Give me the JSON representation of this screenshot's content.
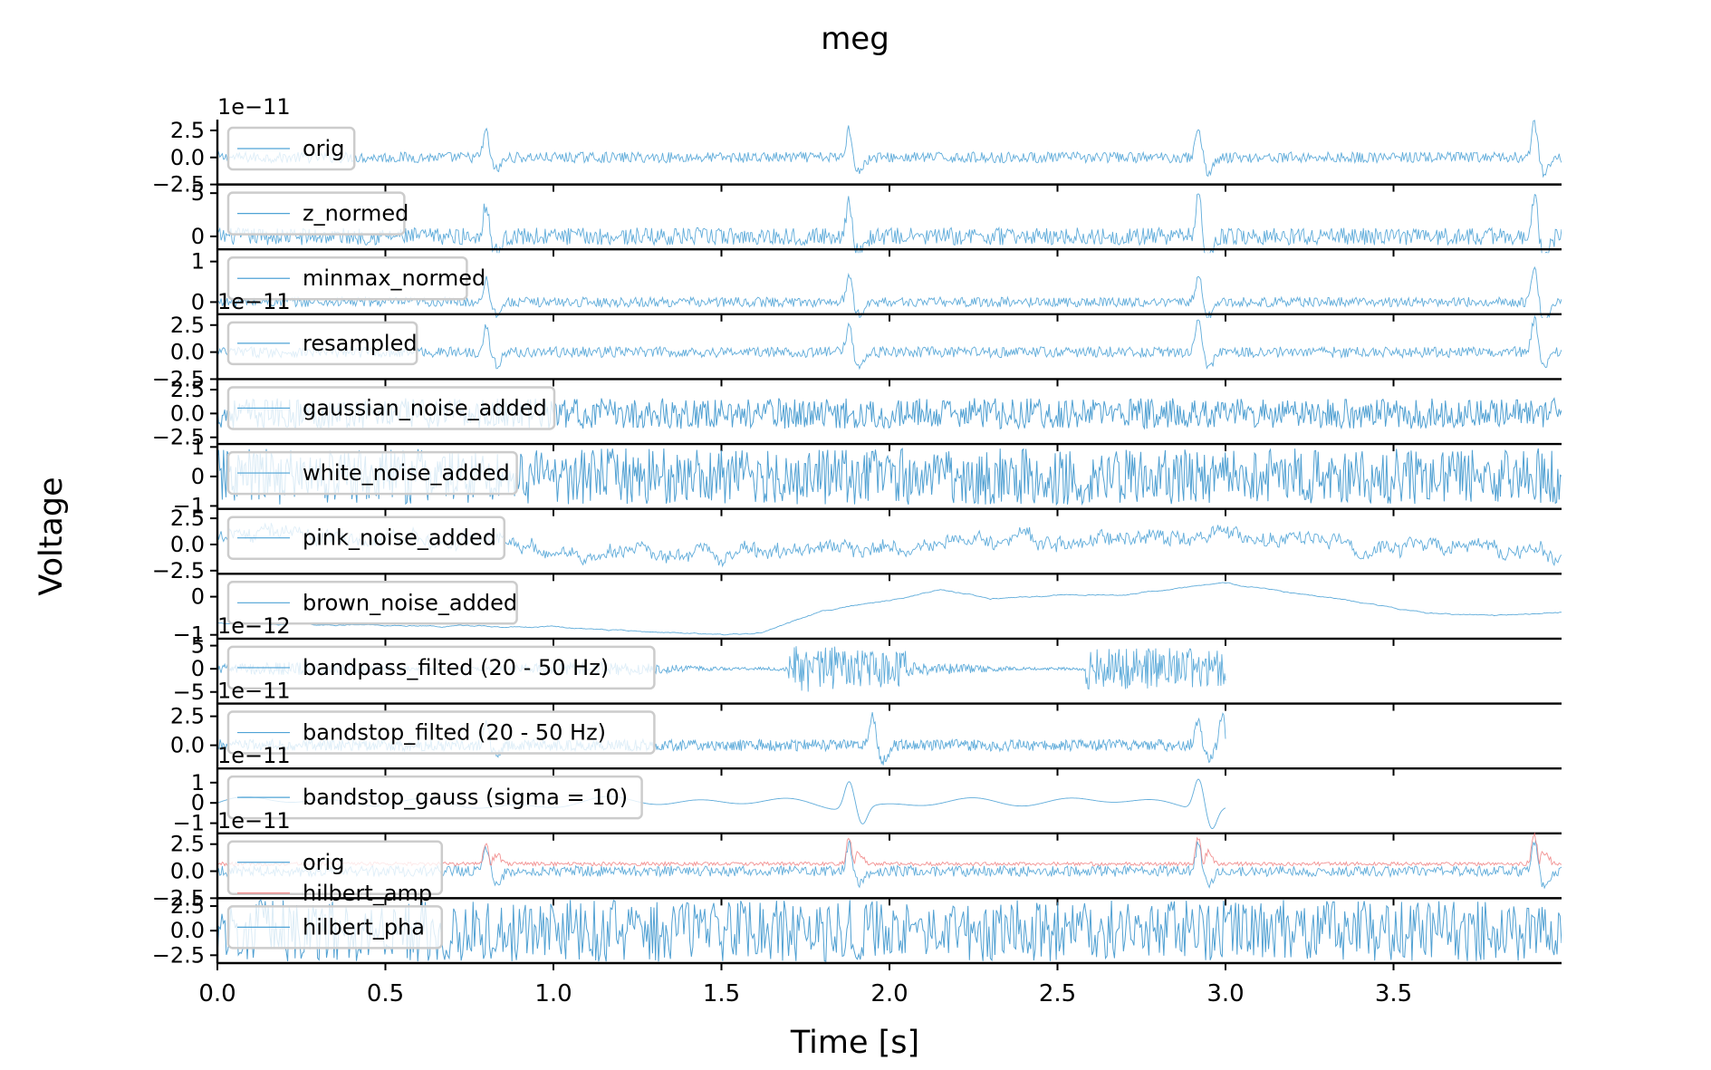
{
  "chart_data": {
    "type": "line",
    "title": "meg",
    "xlabel": "Time [s]",
    "ylabel": "Voltage",
    "xlim": [
      0,
      4.0
    ],
    "xticks": [
      0.0,
      0.5,
      1.0,
      1.5,
      2.0,
      2.5,
      3.0,
      3.5
    ],
    "xtick_labels": [
      "0.0",
      "0.5",
      "1.0",
      "1.5",
      "2.0",
      "2.5",
      "3.0",
      "3.5"
    ],
    "grid": false,
    "legend": "upper left of each panel",
    "colors": {
      "series": "#4fa3d6",
      "dense_series": "#3d96cd",
      "hilbert_amp": "#f07f7f",
      "axis": "#000000",
      "legend_border": "#cccccc"
    },
    "panels": [
      {
        "label": "orig",
        "offset_text": "1e−11",
        "yticks": [
          "2.5",
          "0.0",
          "−2.5"
        ],
        "ylim": [
          -2.5,
          3.5
        ],
        "x_end": 4.0,
        "style": "spiky",
        "noise": 0.5,
        "spikes": [
          [
            0.8,
            2.5
          ],
          [
            1.88,
            2.8
          ],
          [
            2.92,
            3.0
          ],
          [
            3.92,
            3.3
          ]
        ]
      },
      {
        "label": "z_normed",
        "offset_text": "",
        "yticks": [
          "5",
          "0"
        ],
        "ylim": [
          -1.5,
          6.0
        ],
        "x_end": 4.0,
        "style": "spiky",
        "noise": 1.0,
        "spikes": [
          [
            0.8,
            4.0
          ],
          [
            1.88,
            4.5
          ],
          [
            2.92,
            4.8
          ],
          [
            3.92,
            5.2
          ]
        ]
      },
      {
        "label": "minmax_normed",
        "offset_text": "",
        "yticks": [
          "1",
          "0"
        ],
        "ylim": [
          -0.3,
          1.3
        ],
        "x_end": 4.0,
        "style": "spiky",
        "noise": 0.12,
        "spikes": [
          [
            0.8,
            0.6
          ],
          [
            1.88,
            0.7
          ],
          [
            2.92,
            0.75
          ],
          [
            3.92,
            1.0
          ]
        ]
      },
      {
        "label": "resampled",
        "offset_text": "1e−11",
        "yticks": [
          "2.5",
          "0.0",
          "−2.5"
        ],
        "ylim": [
          -2.5,
          3.5
        ],
        "x_end": 4.0,
        "style": "spiky",
        "noise": 0.5,
        "spikes": [
          [
            0.8,
            2.5
          ],
          [
            1.88,
            2.8
          ],
          [
            2.92,
            3.0
          ],
          [
            3.92,
            3.2
          ]
        ]
      },
      {
        "label": "gaussian_noise_added",
        "offset_text": "",
        "yticks": [
          "2.5",
          "0.0",
          "−2.5"
        ],
        "ylim": [
          -3.2,
          3.6
        ],
        "x_end": 4.0,
        "style": "noise",
        "noise": 1.6
      },
      {
        "label": "white_noise_added",
        "offset_text": "",
        "yticks": [
          "1",
          "0",
          "−1"
        ],
        "ylim": [
          -1.1,
          1.1
        ],
        "x_end": 4.0,
        "style": "noise",
        "noise": 0.95
      },
      {
        "label": "pink_noise_added",
        "offset_text": "",
        "yticks": [
          "2.5",
          "0.0",
          "−2.5"
        ],
        "ylim": [
          -2.8,
          3.4
        ],
        "x_end": 4.0,
        "style": "pink",
        "noise": 0.7
      },
      {
        "label": "brown_noise_added",
        "offset_text": "",
        "yticks": [
          "0",
          "−1"
        ],
        "ylim": [
          -1.1,
          0.6
        ],
        "x_end": 4.0,
        "style": "brown",
        "noise": 0.05,
        "anchors": [
          [
            0.0,
            -0.7
          ],
          [
            0.5,
            -0.75
          ],
          [
            1.0,
            -0.8
          ],
          [
            1.5,
            -1.0
          ],
          [
            1.62,
            -0.95
          ],
          [
            1.8,
            -0.35
          ],
          [
            2.0,
            -0.1
          ],
          [
            2.15,
            0.2
          ],
          [
            2.3,
            -0.05
          ],
          [
            2.5,
            0.05
          ],
          [
            2.7,
            0.05
          ],
          [
            3.0,
            0.35
          ],
          [
            3.3,
            0.0
          ],
          [
            3.6,
            -0.45
          ],
          [
            3.8,
            -0.5
          ],
          [
            4.0,
            -0.4
          ]
        ]
      },
      {
        "label": "bandpass_filted (20 - 50 Hz)",
        "offset_text": "1e−12",
        "yticks": [
          "5",
          "0",
          "−5"
        ],
        "ylim": [
          -7.5,
          6.5
        ],
        "x_end": 3.0,
        "style": "bursty",
        "noise": 1.5,
        "bursts": [
          [
            1.82,
            0.12,
            5.0
          ],
          [
            1.95,
            0.1,
            4.0
          ],
          [
            2.78,
            0.2,
            4.5
          ],
          [
            2.95,
            0.05,
            4.0
          ]
        ]
      },
      {
        "label": "bandstop_filted (20 - 50 Hz)",
        "offset_text": "1e−11",
        "yticks": [
          "2.5",
          "0.0"
        ],
        "ylim": [
          -2.0,
          3.6
        ],
        "x_end": 3.0,
        "style": "spiky",
        "noise": 0.5,
        "spikes": [
          [
            0.8,
            1.8
          ],
          [
            1.95,
            2.8
          ],
          [
            2.92,
            2.4
          ],
          [
            2.99,
            2.9
          ]
        ]
      },
      {
        "label": "bandstop_gauss (sigma = 10)",
        "offset_text": "1e−11",
        "yticks": [
          "1",
          "0",
          "−1"
        ],
        "ylim": [
          -1.5,
          1.7
        ],
        "x_end": 3.0,
        "style": "smooth",
        "noise": 0.25,
        "spikes": [
          [
            1.88,
            1.4
          ],
          [
            2.92,
            1.55
          ]
        ]
      },
      {
        "label": "orig",
        "label2": "hilbert_amp",
        "offset_text": "1e−11",
        "yticks": [
          "2.5",
          "0.0",
          "−2.5"
        ],
        "ylim": [
          -2.5,
          3.5
        ],
        "x_end": 4.0,
        "style": "spiky",
        "noise": 0.5,
        "spikes": [
          [
            0.8,
            2.3
          ],
          [
            1.88,
            2.6
          ],
          [
            2.92,
            2.7
          ],
          [
            3.92,
            3.0
          ]
        ]
      },
      {
        "label": "hilbert_pha",
        "offset_text": "",
        "yticks": [
          "2.5",
          "0.0",
          "−2.5"
        ],
        "ylim": [
          -3.3,
          3.3
        ],
        "x_end": 4.0,
        "style": "phase",
        "noise": 3.14
      }
    ]
  }
}
